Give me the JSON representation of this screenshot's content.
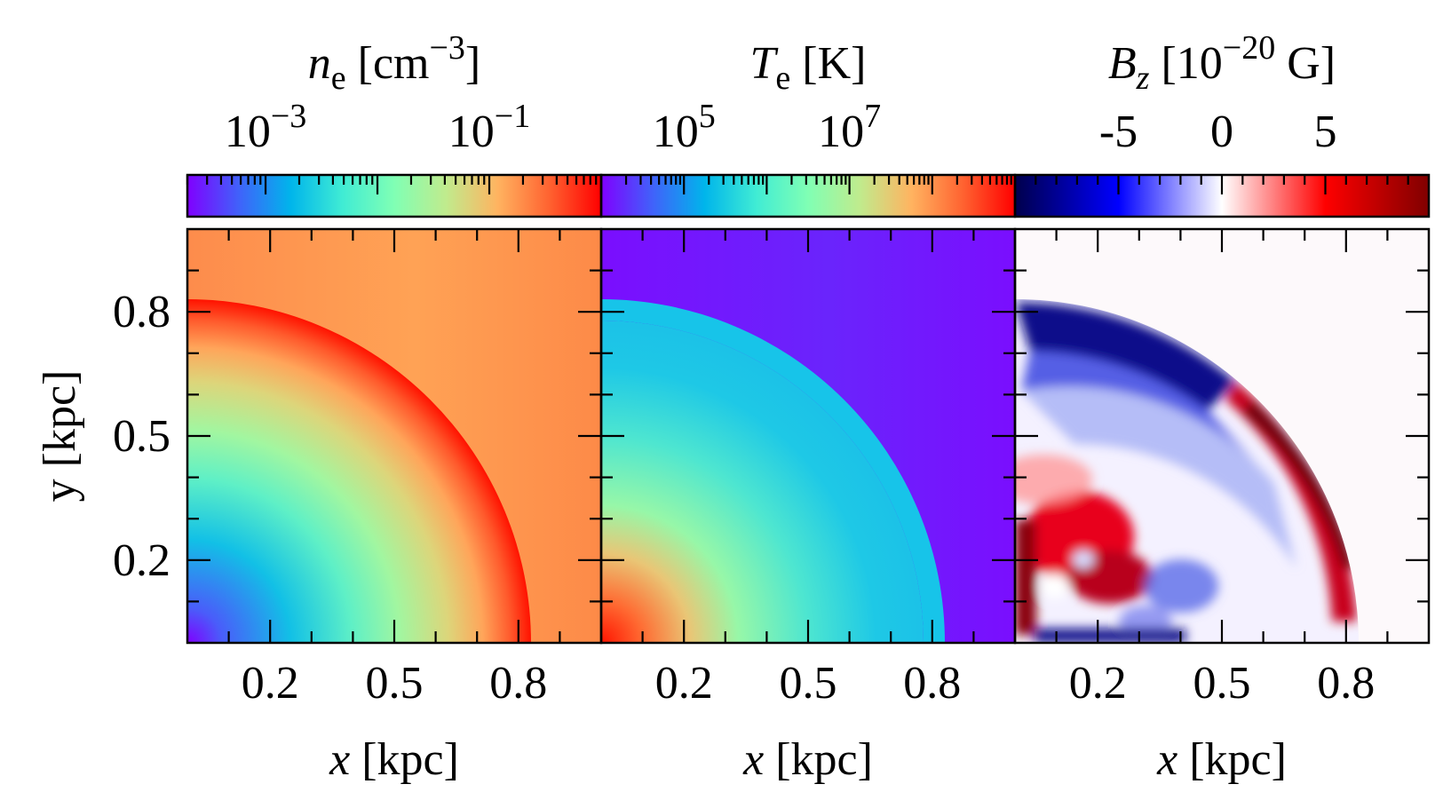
{
  "figure": {
    "panels": [
      {
        "id": "ne",
        "colorbar_label": "n_e [cm^-3]",
        "colorbar_label_parts": {
          "symbol": "n",
          "subscript": "e",
          "unit_open": " [cm",
          "exponent": "−3",
          "unit_close": "]"
        },
        "colorbar_scale": "log",
        "colorbar_range": [
          0.0002,
          1.0
        ],
        "colorbar_ticks": [
          {
            "base": "10",
            "exponent": "−3",
            "value": 0.001
          },
          {
            "base": "10",
            "exponent": "−1",
            "value": 0.1
          }
        ],
        "colormap": "rainbow",
        "xlabel": "x [kpc]",
        "ylabel": "y [kpc]"
      },
      {
        "id": "Te",
        "colorbar_label": "T_e [K]",
        "colorbar_label_parts": {
          "symbol": "T",
          "subscript": "e",
          "unit_open": " [K]",
          "exponent": "",
          "unit_close": ""
        },
        "colorbar_scale": "log",
        "colorbar_range": [
          10000,
          1000000000
        ],
        "colorbar_ticks": [
          {
            "base": "10",
            "exponent": "5",
            "value": 100000
          },
          {
            "base": "10",
            "exponent": "7",
            "value": 10000000
          }
        ],
        "colormap": "rainbow",
        "xlabel": "x [kpc]",
        "ylabel": ""
      },
      {
        "id": "Bz",
        "colorbar_label": "B_z [10^-20 G]",
        "colorbar_label_parts": {
          "symbol": "B",
          "subscript": "z",
          "unit_open": " [10",
          "exponent": "−20",
          "unit_close": " G]"
        },
        "colorbar_scale": "linear",
        "colorbar_range": [
          -10,
          10
        ],
        "colorbar_ticks": [
          {
            "base": "-5",
            "exponent": "",
            "value": -5
          },
          {
            "base": "0",
            "exponent": "",
            "value": 0
          },
          {
            "base": "5",
            "exponent": "",
            "value": 5
          }
        ],
        "colormap": "seismic",
        "xlabel": "x [kpc]",
        "ylabel": ""
      }
    ]
  },
  "chart_data": [
    {
      "type": "heatmap",
      "quantity": "n_e",
      "unit": "cm^-3",
      "x_range": [
        0,
        1
      ],
      "y_range": [
        0,
        1
      ],
      "xlabel": "x [kpc]",
      "ylabel": "y [kpc]",
      "x_ticks": [
        0.2,
        0.5,
        0.8
      ],
      "y_ticks": [
        0.2,
        0.5,
        0.8
      ],
      "x_tick_labels": [
        "0.2",
        "0.5",
        "0.8"
      ],
      "y_tick_labels": [
        "0.2",
        "0.5",
        "0.8"
      ],
      "shell_radius": 0.83,
      "inside_center_value": 0.0002,
      "inside_shell_value": 0.5,
      "outside_value": 0.1,
      "color_scale": "log",
      "colorbar_range": [
        0.0002,
        1.0
      ]
    },
    {
      "type": "heatmap",
      "quantity": "T_e",
      "unit": "K",
      "x_range": [
        0,
        1
      ],
      "y_range": [
        0,
        1
      ],
      "xlabel": "x [kpc]",
      "x_ticks": [
        0.2,
        0.5,
        0.8
      ],
      "x_tick_labels": [
        "0.2",
        "0.5",
        "0.8"
      ],
      "shell_radius": 0.83,
      "inside_center_value": 500000000,
      "inside_shell_value": 200000,
      "outside_value": 15000,
      "color_scale": "log",
      "colorbar_range": [
        10000,
        1000000000
      ]
    },
    {
      "type": "heatmap",
      "quantity": "B_z",
      "unit": "10^-20 G",
      "x_range": [
        0,
        1
      ],
      "y_range": [
        0,
        1
      ],
      "xlabel": "x [kpc]",
      "x_ticks": [
        0.2,
        0.5,
        0.8
      ],
      "x_tick_labels": [
        "0.2",
        "0.5",
        "0.8"
      ],
      "shell_radius": 0.83,
      "outside_value": 0,
      "color_scale": "linear",
      "colorbar_range": [
        -10,
        10
      ]
    }
  ]
}
